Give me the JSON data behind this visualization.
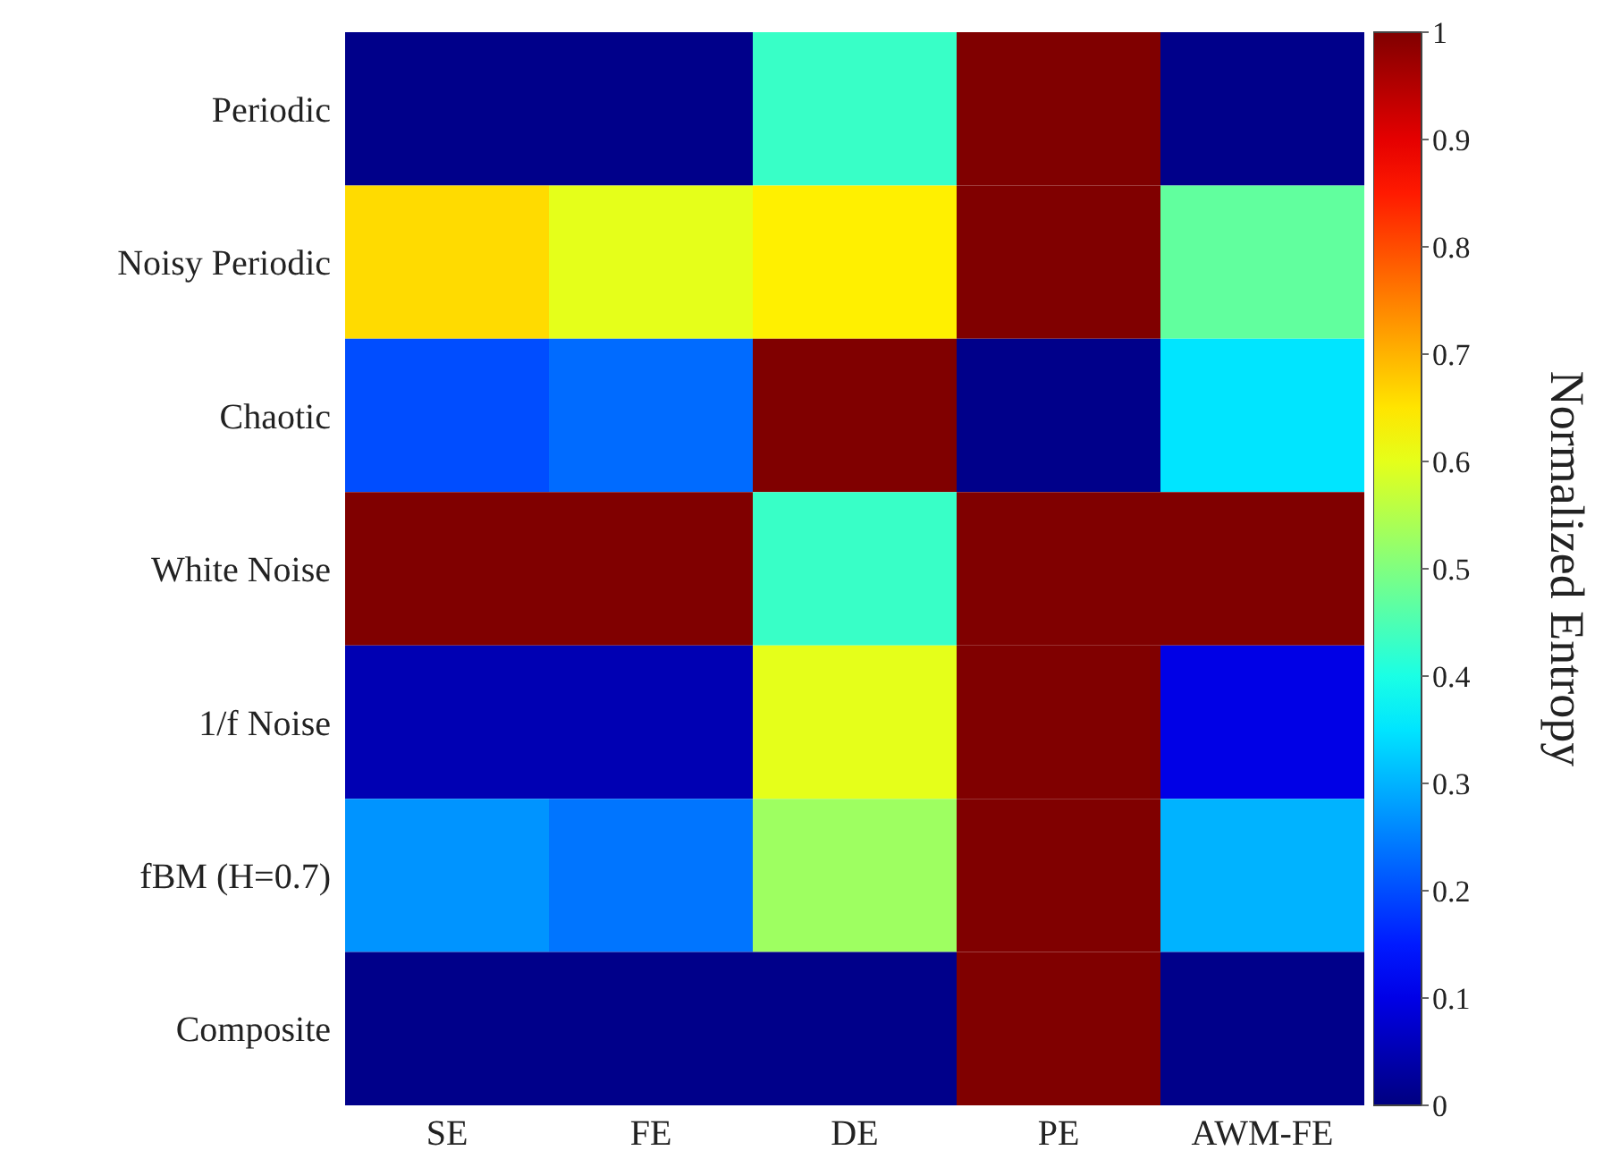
{
  "chart_data": {
    "type": "heatmap",
    "clabel": "Normalized Entropy",
    "categories": [
      "SE",
      "FE",
      "DE",
      "PE",
      "AWM-FE"
    ],
    "y_categories": [
      "Periodic",
      "Noisy Periodic",
      "Chaotic",
      "White Noise",
      "1/f Noise",
      "fBM (H=0.7)",
      "Composite"
    ],
    "cells": [
      [
        0.01,
        0.01,
        0.43,
        1,
        0.01
      ],
      [
        0.66,
        0.6,
        0.64,
        1,
        0.47
      ],
      [
        0.2,
        0.23,
        1,
        0.01,
        0.35
      ],
      [
        1,
        1,
        0.43,
        1,
        1
      ],
      [
        0.05,
        0.05,
        0.6,
        1,
        0.1
      ],
      [
        0.27,
        0.24,
        0.53,
        1,
        0.3
      ],
      [
        0.01,
        0.01,
        0.01,
        1,
        0.01
      ]
    ],
    "clim": [
      0,
      1
    ],
    "cticks": [
      0,
      0.1,
      0.2,
      0.3,
      0.4,
      0.5,
      0.6,
      0.7,
      0.8,
      0.9,
      1
    ]
  }
}
